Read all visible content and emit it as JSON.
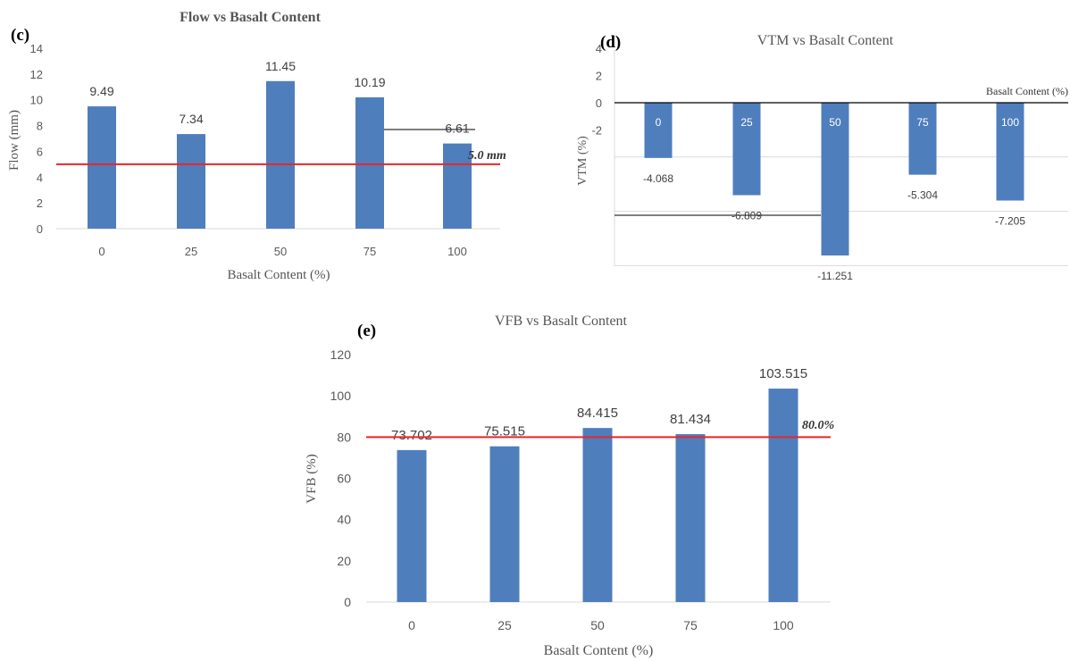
{
  "chart_data": [
    {
      "type": "bar",
      "panel": "(c)",
      "title": "Flow vs Basalt Content",
      "xlabel": "Basalt Content (%)",
      "ylabel": "Flow (mm)",
      "categories": [
        "0",
        "25",
        "50",
        "75",
        "100"
      ],
      "values": [
        9.49,
        7.34,
        11.45,
        10.19,
        6.61
      ],
      "data_labels": [
        "9.49",
        "7.34",
        "11.45",
        "10.19",
        "6.61"
      ],
      "ylim": [
        0,
        14
      ],
      "yticks": [
        "0",
        "2",
        "4",
        "6",
        "8",
        "10",
        "12",
        "14"
      ],
      "reference_line": {
        "value": 5.0,
        "label": "5.0 mm",
        "color": "#e8262a"
      },
      "bar_color": "#4f7ebd"
    },
    {
      "type": "bar",
      "panel": "(d)",
      "title": "VTM vs Basalt Content",
      "xlabel": "Basalt Content (%)",
      "ylabel": "VTM (%)",
      "categories": [
        "0",
        "25",
        "50",
        "75",
        "100"
      ],
      "values": [
        -4.068,
        -6.809,
        -11.251,
        -5.304,
        -7.205
      ],
      "data_labels": [
        "-4.068",
        "-6.809",
        "-11.251",
        "-5.304",
        "-7.205"
      ],
      "ylim": [
        -12,
        4
      ],
      "yticks": [
        "-2",
        "0",
        "2",
        "4"
      ],
      "bar_color": "#4f7ebd"
    },
    {
      "type": "bar",
      "panel": "(e)",
      "title": "VFB vs Basalt Content",
      "xlabel": "Basalt Content (%)",
      "ylabel": "VFB (%)",
      "categories": [
        "0",
        "25",
        "50",
        "75",
        "100"
      ],
      "values": [
        73.702,
        75.515,
        84.415,
        81.434,
        103.515
      ],
      "data_labels": [
        "73.702",
        "75.515",
        "84.415",
        "81.434",
        "103.515"
      ],
      "ylim": [
        0,
        120
      ],
      "yticks": [
        "0",
        "20",
        "40",
        "60",
        "80",
        "100",
        "120"
      ],
      "reference_line": {
        "value": 80.0,
        "label": "80.0%",
        "color": "#e8262a"
      },
      "bar_color": "#4f7ebd"
    }
  ]
}
